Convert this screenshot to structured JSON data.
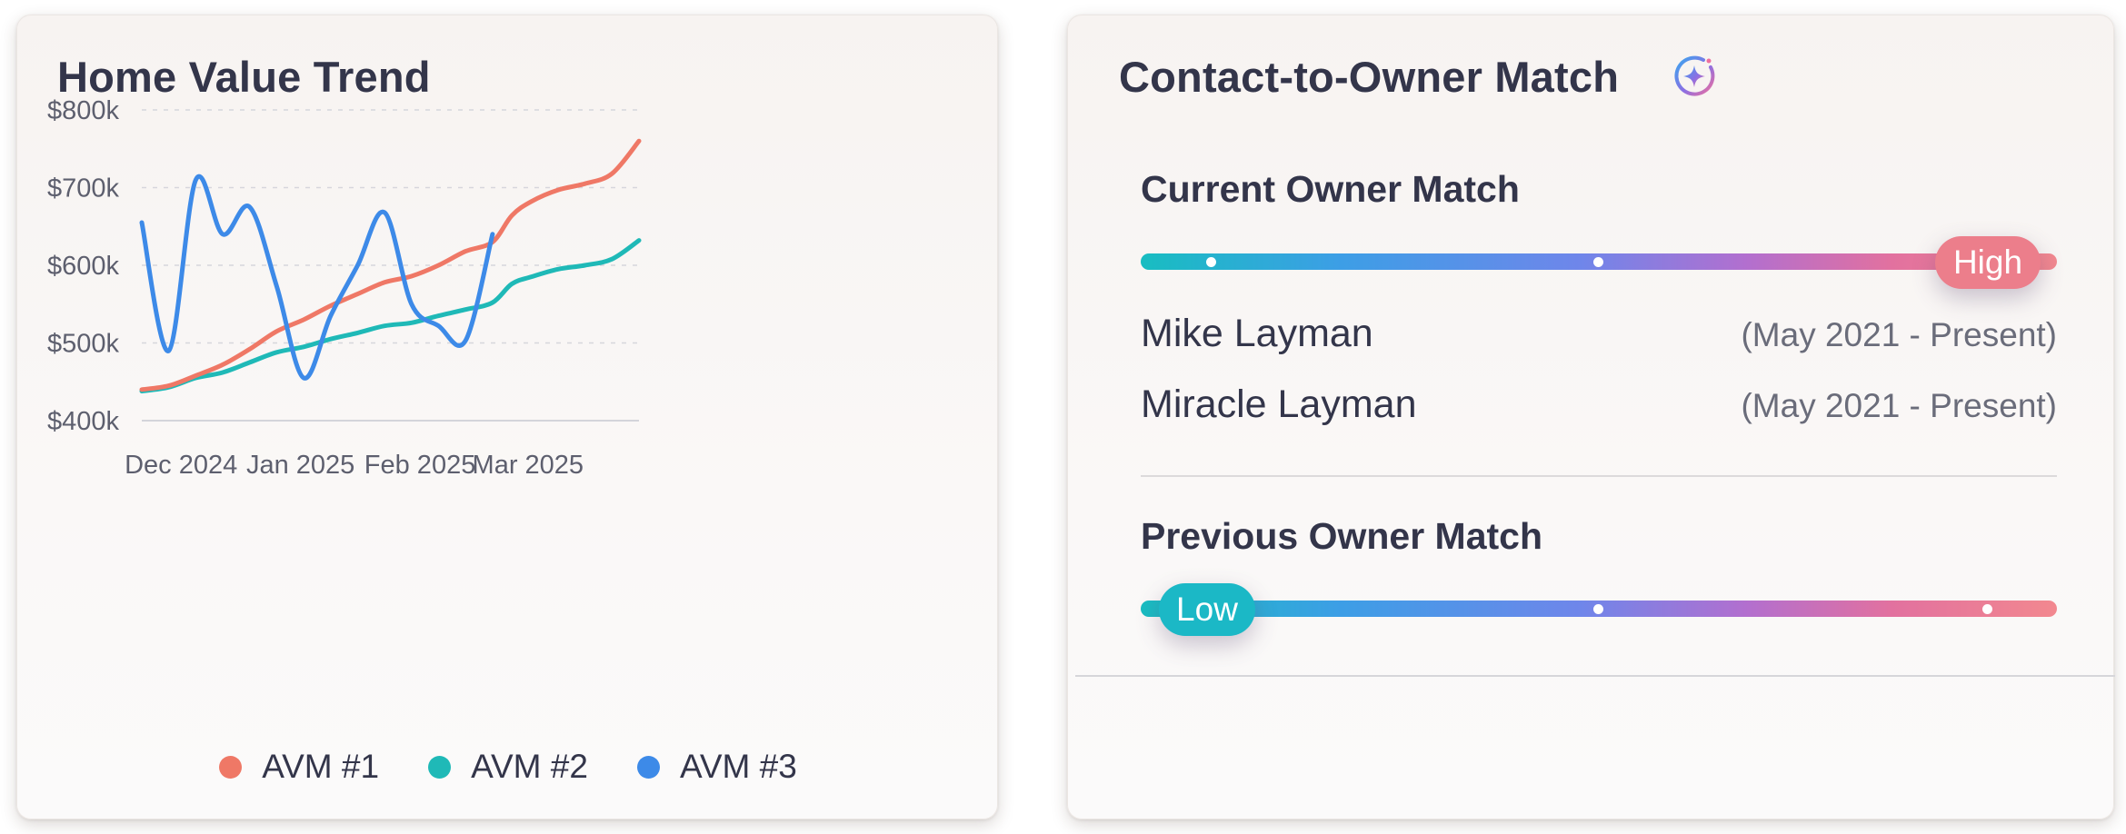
{
  "chart_card": {
    "title": "Home Value Trend",
    "legend": [
      {
        "label": "AVM #1",
        "color": "#ef7866"
      },
      {
        "label": "AVM #2",
        "color": "#1fb9b7"
      },
      {
        "label": "AVM #3",
        "color": "#3d8ae8"
      }
    ]
  },
  "chart_data": {
    "type": "line",
    "title": "Home Value Trend",
    "xlabel": "",
    "ylabel": "",
    "x_ticks": [
      "Dec 2024",
      "Jan 2025",
      "Feb 2025",
      "Mar 2025"
    ],
    "y_ticks": [
      400,
      500,
      600,
      700,
      800
    ],
    "y_tick_labels": [
      "$400k",
      "$500k",
      "$600k",
      "$700k",
      "$800k"
    ],
    "ylim": [
      400,
      800
    ],
    "xlim": [
      "2024-11-22",
      "2025-03-31"
    ],
    "grid": true,
    "legend_position": "bottom",
    "series": [
      {
        "name": "AVM #1",
        "color": "#ef7866",
        "points": [
          [
            "2024-11-22",
            440
          ],
          [
            "2024-11-29",
            445
          ],
          [
            "2024-12-06",
            458
          ],
          [
            "2024-12-13",
            472
          ],
          [
            "2024-12-20",
            492
          ],
          [
            "2024-12-27",
            515
          ],
          [
            "2025-01-03",
            530
          ],
          [
            "2025-01-10",
            548
          ],
          [
            "2025-01-17",
            563
          ],
          [
            "2025-01-24",
            578
          ],
          [
            "2025-01-31",
            586
          ],
          [
            "2025-02-07",
            600
          ],
          [
            "2025-02-14",
            618
          ],
          [
            "2025-02-21",
            630
          ],
          [
            "2025-02-26",
            664
          ],
          [
            "2025-03-03",
            682
          ],
          [
            "2025-03-10",
            697
          ],
          [
            "2025-03-17",
            705
          ],
          [
            "2025-03-24",
            718
          ],
          [
            "2025-03-31",
            760
          ]
        ]
      },
      {
        "name": "AVM #2",
        "color": "#1fb9b7",
        "points": [
          [
            "2024-11-22",
            438
          ],
          [
            "2024-11-29",
            443
          ],
          [
            "2024-12-06",
            455
          ],
          [
            "2024-12-13",
            462
          ],
          [
            "2024-12-20",
            475
          ],
          [
            "2024-12-27",
            488
          ],
          [
            "2025-01-03",
            495
          ],
          [
            "2025-01-10",
            505
          ],
          [
            "2025-01-17",
            513
          ],
          [
            "2025-01-24",
            522
          ],
          [
            "2025-01-31",
            526
          ],
          [
            "2025-02-07",
            535
          ],
          [
            "2025-02-14",
            543
          ],
          [
            "2025-02-21",
            552
          ],
          [
            "2025-02-26",
            576
          ],
          [
            "2025-03-03",
            585
          ],
          [
            "2025-03-10",
            595
          ],
          [
            "2025-03-17",
            600
          ],
          [
            "2025-03-24",
            608
          ],
          [
            "2025-03-31",
            632
          ]
        ]
      },
      {
        "name": "AVM #3",
        "color": "#3d8ae8",
        "points": [
          [
            "2024-11-22",
            655
          ],
          [
            "2024-11-29",
            490
          ],
          [
            "2024-12-06",
            710
          ],
          [
            "2024-12-13",
            640
          ],
          [
            "2024-12-20",
            675
          ],
          [
            "2024-12-27",
            573
          ],
          [
            "2025-01-03",
            455
          ],
          [
            "2025-01-10",
            535
          ],
          [
            "2025-01-17",
            600
          ],
          [
            "2025-01-24",
            668
          ],
          [
            "2025-01-31",
            550
          ],
          [
            "2025-02-07",
            522
          ],
          [
            "2025-02-14",
            503
          ],
          [
            "2025-02-21",
            640
          ]
        ]
      }
    ]
  },
  "match_card": {
    "title": "Contact-to-Owner Match",
    "current": {
      "title": "Current Owner Match",
      "level": "High",
      "owners": [
        {
          "name": "Mike Layman",
          "dates": "(May 2021 - Present)"
        },
        {
          "name": "Miracle Layman",
          "dates": "(May 2021 - Present)"
        }
      ]
    },
    "previous": {
      "title": "Previous Owner Match",
      "level": "Low"
    }
  }
}
